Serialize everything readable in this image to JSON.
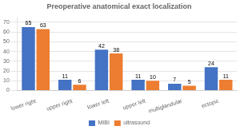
{
  "chart_data": {
    "type": "bar",
    "title": "Preoperative anatomical exact localization",
    "categories": [
      "lower right",
      "upper right",
      "lower left",
      "upper left",
      "multiglandular",
      "ectopic"
    ],
    "series": [
      {
        "name": "MIBI",
        "color": "#4472C4",
        "values": [
          65,
          11,
          42,
          11,
          7,
          24
        ]
      },
      {
        "name": "ultrasound",
        "color": "#ED7D31",
        "values": [
          63,
          6,
          38,
          10,
          5,
          11
        ]
      }
    ],
    "ylim": [
      0,
      75
    ],
    "yticks": [
      0,
      10,
      20,
      30,
      40,
      50,
      60,
      70
    ],
    "grid": true,
    "legend": "bottom",
    "data_labels": true
  }
}
